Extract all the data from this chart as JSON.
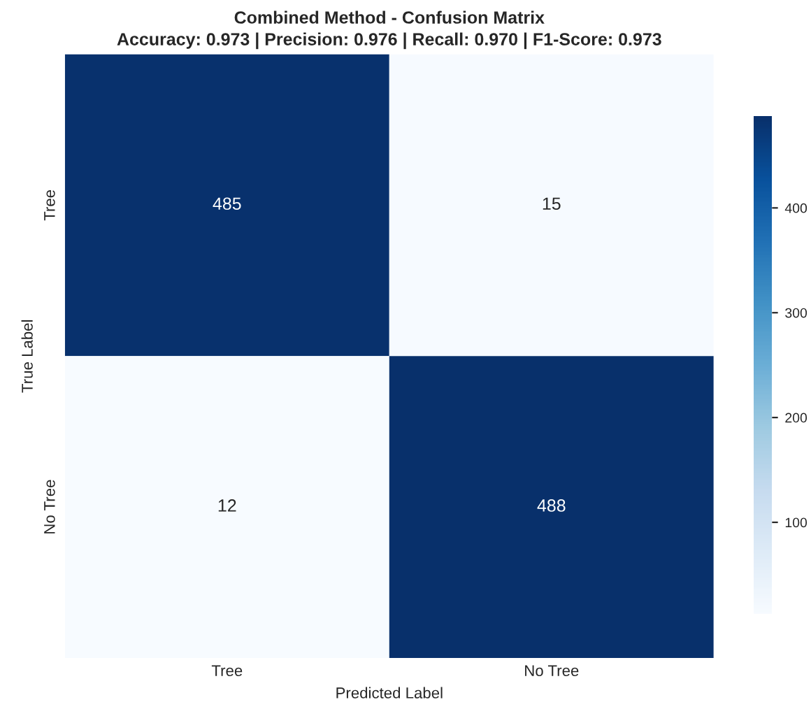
{
  "chart_data": {
    "type": "heatmap",
    "title": "Combined Method - Confusion Matrix",
    "subtitle": "Accuracy: 0.973 | Precision: 0.976 | Recall: 0.970 | F1-Score: 0.973",
    "xlabel": "Predicted Label",
    "ylabel": "True Label",
    "categories": [
      "Tree",
      "No Tree"
    ],
    "y_categories": [
      "Tree",
      "No Tree"
    ],
    "cells": [
      [
        485,
        15
      ],
      [
        12,
        488
      ]
    ],
    "clim": [
      12,
      488
    ],
    "cticks": [
      100,
      200,
      300,
      400
    ],
    "data_labels": true
  }
}
